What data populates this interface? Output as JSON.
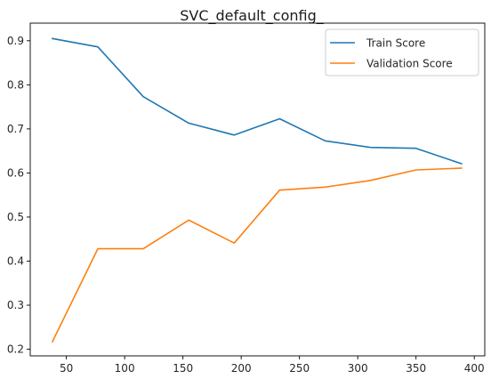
{
  "chart_data": {
    "type": "line",
    "title": "SVC_default_config_",
    "xlabel": "",
    "ylabel": "",
    "xlim": [
      19,
      409
    ],
    "ylim": [
      0.185,
      0.94
    ],
    "x_ticks": [
      50,
      100,
      150,
      200,
      250,
      300,
      350,
      400
    ],
    "y_ticks": [
      0.2,
      0.3,
      0.4,
      0.5,
      0.6,
      0.7,
      0.8,
      0.9
    ],
    "grid": false,
    "legend_position": "top-right",
    "x": [
      38,
      77,
      116,
      155,
      194,
      233,
      272,
      311,
      350,
      389
    ],
    "series": [
      {
        "name": "Train Score",
        "color": "#1f77b4",
        "values": [
          0.905,
          0.886,
          0.773,
          0.713,
          0.686,
          0.723,
          0.673,
          0.658,
          0.656,
          0.621
        ]
      },
      {
        "name": "Validation Score",
        "color": "#ff7f0e",
        "values": [
          0.217,
          0.428,
          0.428,
          0.493,
          0.441,
          0.561,
          0.568,
          0.583,
          0.607,
          0.611
        ]
      }
    ]
  }
}
